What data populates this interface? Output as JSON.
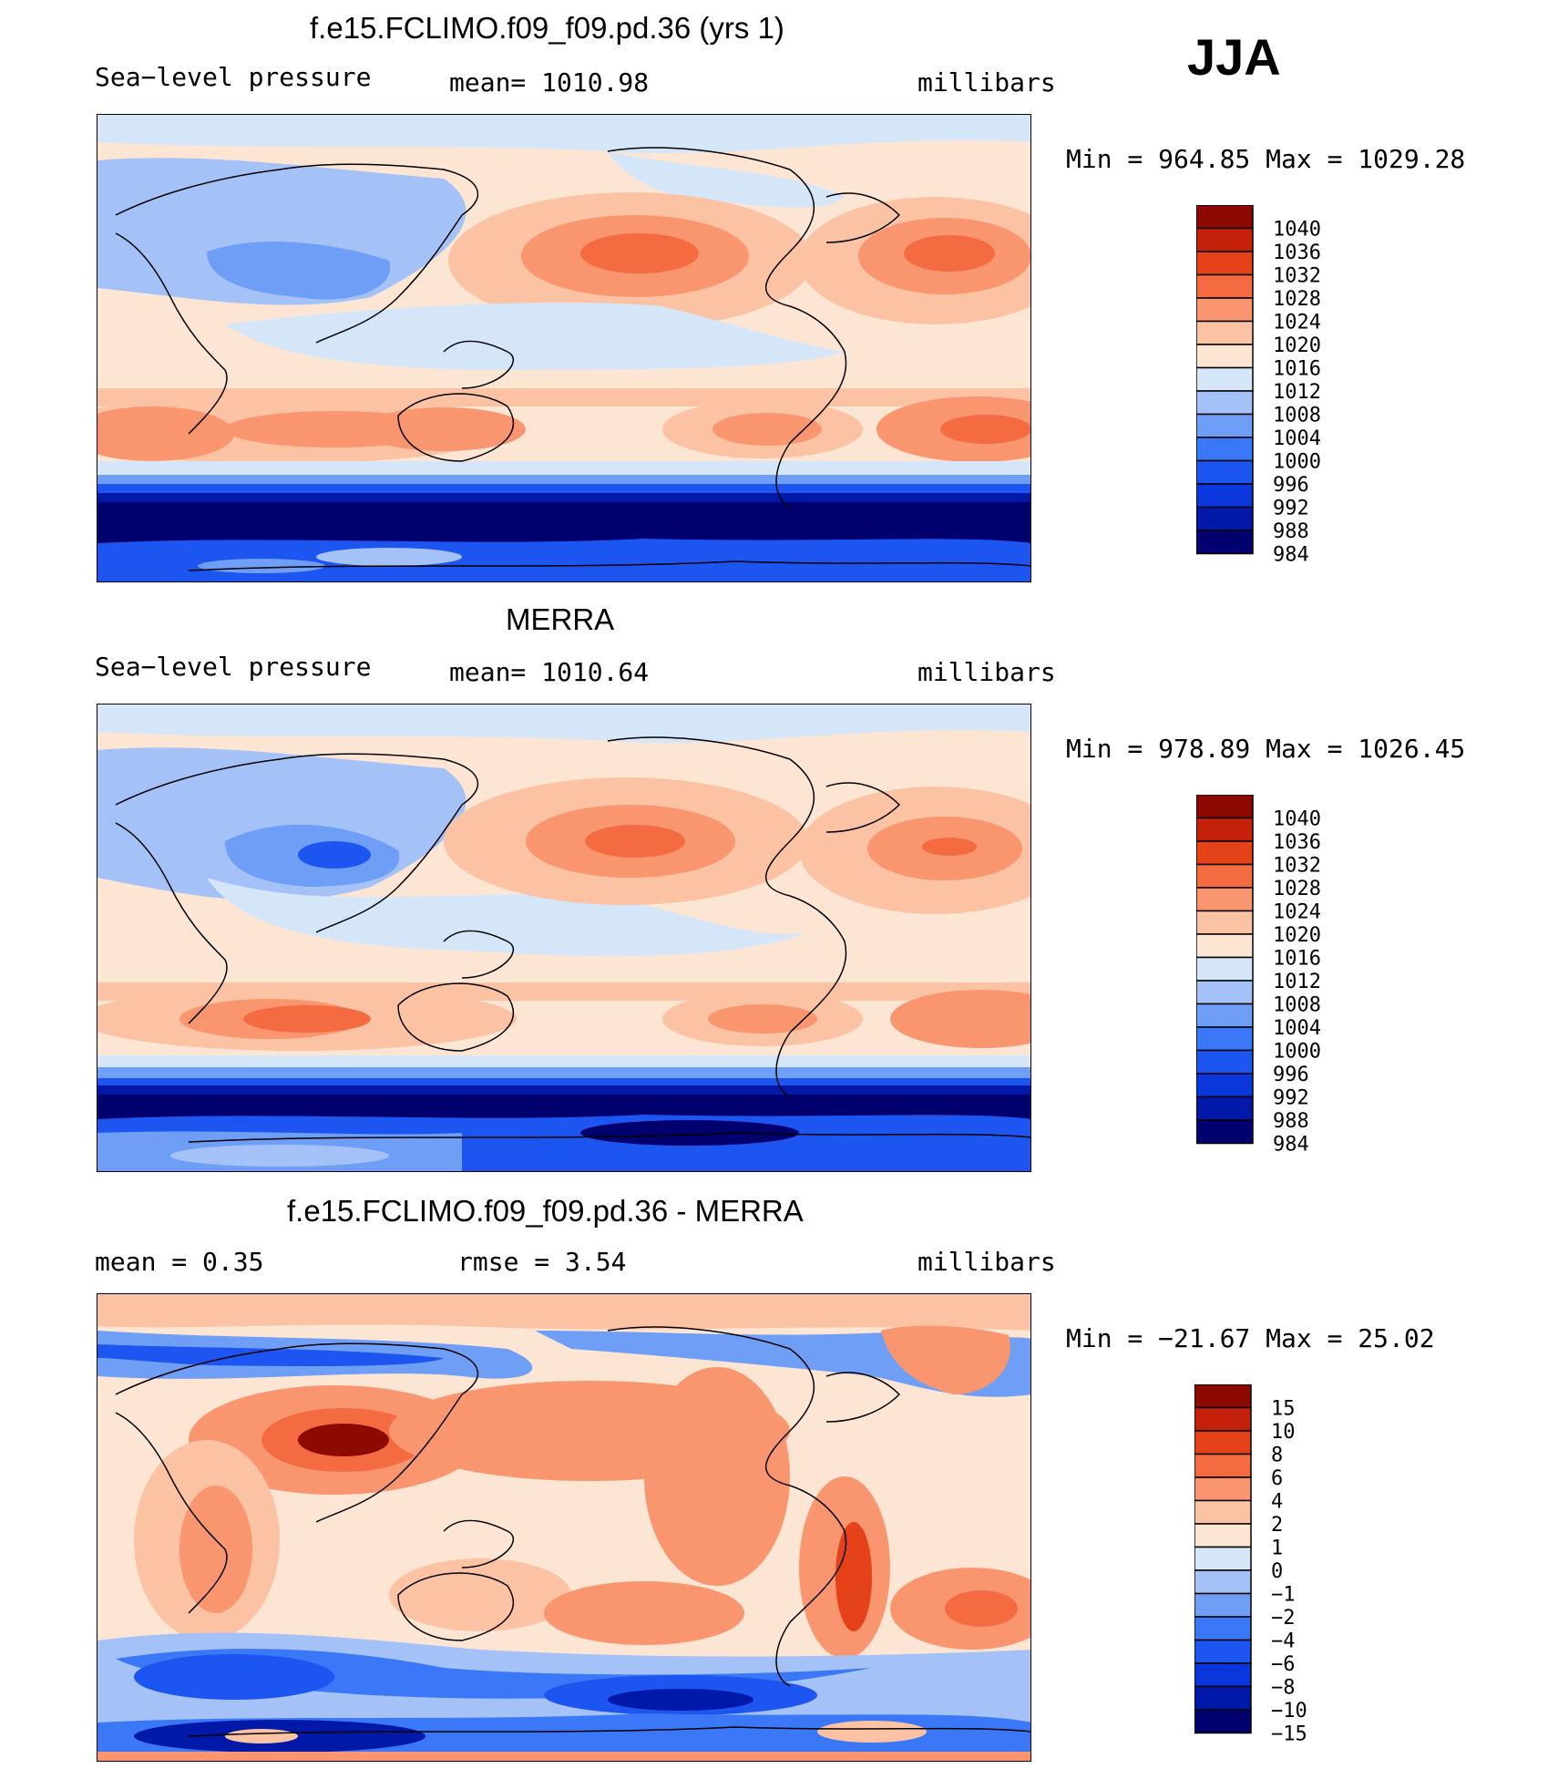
{
  "season": "JJA",
  "panels": [
    {
      "title": "f.e15.FCLIMO.f09_f09.pd.36 (yrs 1)",
      "left_label": "Sea−level pressure",
      "center_label": "mean=  1010.98",
      "units": "millibars",
      "minmax": "Min  =  964.85  Max  =  1029.28"
    },
    {
      "title": "MERRA",
      "left_label": "Sea−level pressure",
      "center_label": "mean=  1010.64",
      "units": "millibars",
      "minmax": "Min  =  978.89  Max  =  1026.45"
    },
    {
      "title": "f.e15.FCLIMO.f09_f09.pd.36 - MERRA",
      "left_label": "mean  =     0.35",
      "center_label": "rmse  =     3.54",
      "units": "millibars",
      "minmax": "Min  =  −21.67  Max  =    25.02"
    }
  ],
  "colors": {
    "pressure": [
      "#00006e",
      "#0019a8",
      "#0a37dc",
      "#1c55f0",
      "#3a78f7",
      "#6e9ef5",
      "#a4c2f7",
      "#d5e6f8",
      "#fde5d4",
      "#fcc2a4",
      "#f9966f",
      "#f56b41",
      "#e64219",
      "#c4200a",
      "#8c0a00"
    ],
    "diff": [
      "#00006e",
      "#0019a8",
      "#0a37dc",
      "#1c55f0",
      "#3a78f7",
      "#6e9ef5",
      "#a4c2f7",
      "#d5e6f8",
      "#fde5d4",
      "#fcc2a4",
      "#f9966f",
      "#f56b41",
      "#e64219",
      "#c4200a",
      "#8c0a00"
    ]
  },
  "colorbars": {
    "pressure_labels": [
      "1040",
      "1036",
      "1032",
      "1028",
      "1024",
      "1020",
      "1016",
      "1012",
      "1008",
      "1004",
      "1000",
      "996",
      "992",
      "988",
      "984"
    ],
    "diff_labels": [
      "15",
      "10",
      "8",
      "6",
      "4",
      "2",
      "1",
      "0",
      "−1",
      "−2",
      "−4",
      "−6",
      "−8",
      "−10",
      "−15"
    ]
  },
  "chart_data": [
    {
      "type": "heatmap",
      "title": "f.e15.FCLIMO.f09_f09.pd.36 (yrs 1)",
      "variable": "Sea-level pressure",
      "units": "millibars",
      "mean": 1010.98,
      "min": 964.85,
      "max": 1029.28,
      "contour_levels": [
        984,
        988,
        992,
        996,
        1000,
        1004,
        1008,
        1012,
        1016,
        1020,
        1024,
        1028,
        1032,
        1036,
        1040
      ]
    },
    {
      "type": "heatmap",
      "title": "MERRA",
      "variable": "Sea-level pressure",
      "units": "millibars",
      "mean": 1010.64,
      "min": 978.89,
      "max": 1026.45,
      "contour_levels": [
        984,
        988,
        992,
        996,
        1000,
        1004,
        1008,
        1012,
        1016,
        1020,
        1024,
        1028,
        1032,
        1036,
        1040
      ]
    },
    {
      "type": "heatmap",
      "title": "f.e15.FCLIMO.f09_f09.pd.36 - MERRA",
      "units": "millibars",
      "mean": 0.35,
      "rmse": 3.54,
      "min": -21.67,
      "max": 25.02,
      "contour_levels": [
        -15,
        -10,
        -8,
        -6,
        -4,
        -2,
        -1,
        0,
        1,
        2,
        4,
        6,
        8,
        10,
        15
      ]
    }
  ]
}
